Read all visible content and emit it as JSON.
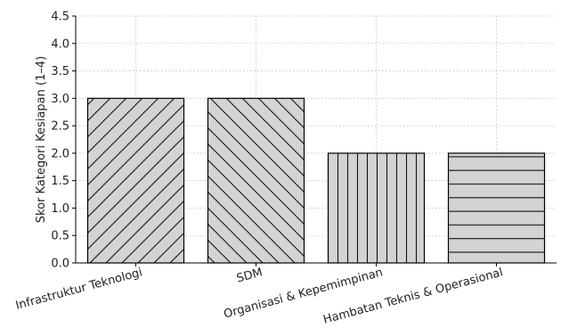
{
  "chart_data": {
    "type": "bar",
    "title": "",
    "xlabel": "",
    "ylabel": "Skor Kategori Kesiapan (1–4)",
    "categories": [
      "Infrastruktur Teknologi",
      "SDM",
      "Organisasi & Kepemimpinan",
      "Hambatan Teknis & Operasional"
    ],
    "values": [
      3.0,
      3.0,
      2.0,
      2.0
    ],
    "ylim": [
      0,
      4.5
    ],
    "yticks": [
      "0.0",
      "0.5",
      "1.0",
      "1.5",
      "2.0",
      "2.5",
      "3.0",
      "3.5",
      "4.0",
      "4.5"
    ],
    "grid": "vertical and horizontal dotted",
    "bar_color": "#d3d3d3",
    "edge_color": "#000000",
    "hatches": [
      "diagonal-up",
      "diagonal-down",
      "vertical",
      "horizontal"
    ],
    "xtick_rotation_deg": 15
  }
}
